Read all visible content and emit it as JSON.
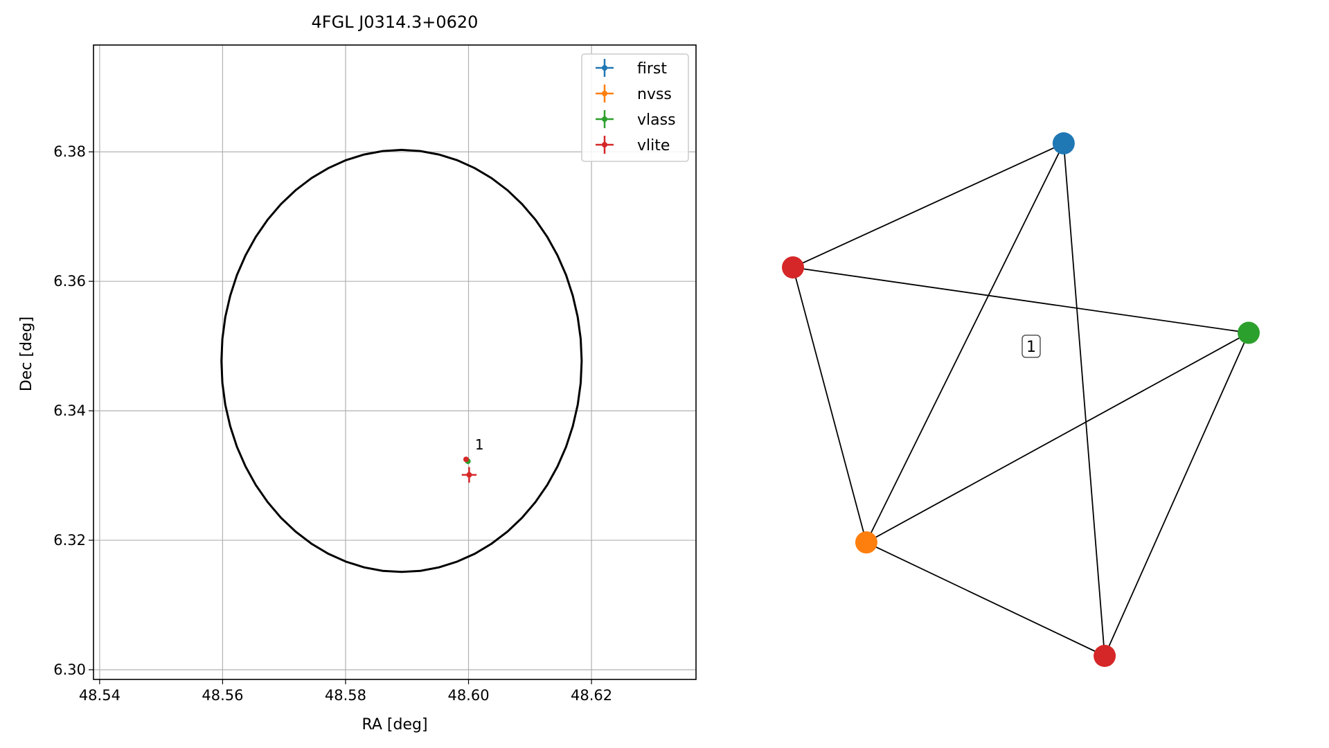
{
  "chart_data": [
    {
      "type": "scatter",
      "title": "4FGL J0314.3+0620",
      "xlabel": "RA [deg]",
      "ylabel": "Dec [deg]",
      "xlim": [
        48.539,
        48.637
      ],
      "ylim": [
        6.2985,
        6.3965
      ],
      "xticks": [
        48.54,
        48.56,
        48.58,
        48.6,
        48.62
      ],
      "xtick_labels": [
        "48.54",
        "48.56",
        "48.58",
        "48.60",
        "48.62"
      ],
      "yticks": [
        6.3,
        6.32,
        6.34,
        6.36,
        6.38
      ],
      "ytick_labels": [
        "6.30",
        "6.32",
        "6.34",
        "6.36",
        "6.38"
      ],
      "grid": true,
      "legend_position": "upper-right",
      "series": [
        {
          "name": "first",
          "color": "#1f77b4",
          "points": [
            {
              "x": 48.5997,
              "y": 6.3324
            }
          ]
        },
        {
          "name": "nvss",
          "color": "#ff7f0e",
          "points": [
            {
              "x": 48.5998,
              "y": 6.3323
            }
          ]
        },
        {
          "name": "vlass",
          "color": "#2ca02c",
          "points": [
            {
              "x": 48.5999,
              "y": 6.3322
            }
          ]
        },
        {
          "name": "vlite",
          "color": "#d62728",
          "points": [
            {
              "x": 48.5996,
              "y": 6.3325,
              "xerr": 0.0003,
              "yerr": 0.0003
            },
            {
              "x": 48.6001,
              "y": 6.3301,
              "xerr": 0.0012,
              "yerr": 0.0012
            }
          ]
        }
      ],
      "ellipse": {
        "center_x": 48.5891,
        "center_y": 6.3477,
        "semi_x": 0.0293,
        "semi_y": 0.0326,
        "color": "#000000"
      },
      "annotations": [
        {
          "text": "1",
          "x": 48.6006,
          "y": 6.3336
        }
      ]
    },
    {
      "type": "network",
      "nodes": [
        {
          "id": "first",
          "color": "#1f77b4",
          "x": 0.594,
          "y": 0.917
        },
        {
          "id": "vlite-a",
          "color": "#d62728",
          "x": 0.0,
          "y": 0.695
        },
        {
          "id": "vlass",
          "color": "#2ca02c",
          "x": 1.0,
          "y": 0.578
        },
        {
          "id": "nvss",
          "color": "#ff7f0e",
          "x": 0.161,
          "y": 0.203
        },
        {
          "id": "vlite-b",
          "color": "#d62728",
          "x": 0.684,
          "y": 0.0
        }
      ],
      "edges": [
        [
          "first",
          "vlite-a"
        ],
        [
          "first",
          "nvss"
        ],
        [
          "first",
          "vlite-b"
        ],
        [
          "vlite-a",
          "vlass"
        ],
        [
          "vlite-a",
          "nvss"
        ],
        [
          "vlass",
          "nvss"
        ],
        [
          "vlass",
          "vlite-b"
        ],
        [
          "nvss",
          "vlite-b"
        ]
      ],
      "label": "1"
    }
  ]
}
